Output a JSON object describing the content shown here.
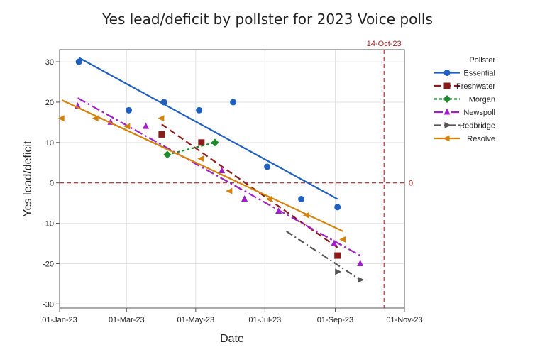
{
  "chart_data": {
    "type": "scatter",
    "title": "Yes lead/deficit by pollster for 2023 Voice polls",
    "xlabel": "Date",
    "ylabel": "Yes lead/deficit",
    "x_ticks": [
      "01-Jan-23",
      "01-Mar-23",
      "01-May-23",
      "01-Jul-23",
      "01-Sep-23",
      "01-Nov-23"
    ],
    "x_tick_days": [
      0,
      59,
      120,
      181,
      243,
      304
    ],
    "xlim_days": [
      0,
      304
    ],
    "ylim": [
      -31,
      33
    ],
    "y_ticks": [
      30,
      20,
      10,
      0,
      -10,
      -20,
      -30
    ],
    "grid": true,
    "legend_title": "Pollster",
    "legend_position": "right",
    "reference_lines": {
      "vertical": {
        "label": "14-Oct-23",
        "day": 286,
        "color": "#b22222"
      },
      "horizontal": {
        "label": "0",
        "value": 0,
        "color": "#b22222"
      }
    },
    "series": [
      {
        "name": "Essential",
        "color": "#1f5fbf",
        "marker": "circle",
        "dash": "",
        "x_days": [
          17,
          61,
          92,
          123,
          153,
          183,
          213,
          245
        ],
        "y": [
          30,
          18,
          20,
          18,
          20,
          4,
          -4,
          -6
        ],
        "trend": {
          "x_days": [
            17,
            245
          ],
          "y": [
            31,
            -4
          ]
        }
      },
      {
        "name": "Freshwater",
        "color": "#8b1a1a",
        "marker": "square",
        "dash": "9,5",
        "x_days": [
          90,
          125,
          245
        ],
        "y": [
          12,
          10,
          -18
        ],
        "trend": {
          "x_days": [
            90,
            245
          ],
          "y": [
            14.5,
            -16
          ]
        }
      },
      {
        "name": "Morgan",
        "color": "#1e8c2e",
        "marker": "diamond",
        "dash": "4,3",
        "x_days": [
          95,
          137
        ],
        "y": [
          7,
          10
        ],
        "trend": {
          "x_days": [
            95,
            137
          ],
          "y": [
            7,
            10
          ]
        }
      },
      {
        "name": "Newspoll",
        "color": "#a020c8",
        "marker": "triangle-up",
        "dash": "12,4,3,4",
        "x_days": [
          16,
          45,
          76,
          143,
          163,
          193,
          242,
          265
        ],
        "y": [
          19,
          15,
          14,
          3,
          -4,
          -7,
          -15,
          -20
        ],
        "trend": {
          "x_days": [
            16,
            265
          ],
          "y": [
            21,
            -18
          ]
        }
      },
      {
        "name": "Redbridge",
        "color": "#555555",
        "marker": "triangle-right",
        "dash": "10,4,2,4",
        "x_days": [
          245,
          265
        ],
        "y": [
          -22,
          -24
        ],
        "trend": {
          "x_days": [
            200,
            265
          ],
          "y": [
            -12,
            -24
          ]
        }
      },
      {
        "name": "Resolve",
        "color": "#d4820a",
        "marker": "triangle-left",
        "dash": "",
        "x_days": [
          2,
          32,
          60,
          90,
          125,
          150,
          185,
          218,
          250
        ],
        "y": [
          16,
          16,
          14,
          16,
          6,
          -2,
          -4,
          -8,
          -14
        ],
        "trend": {
          "x_days": [
            2,
            250
          ],
          "y": [
            20.5,
            -12
          ]
        }
      }
    ]
  }
}
